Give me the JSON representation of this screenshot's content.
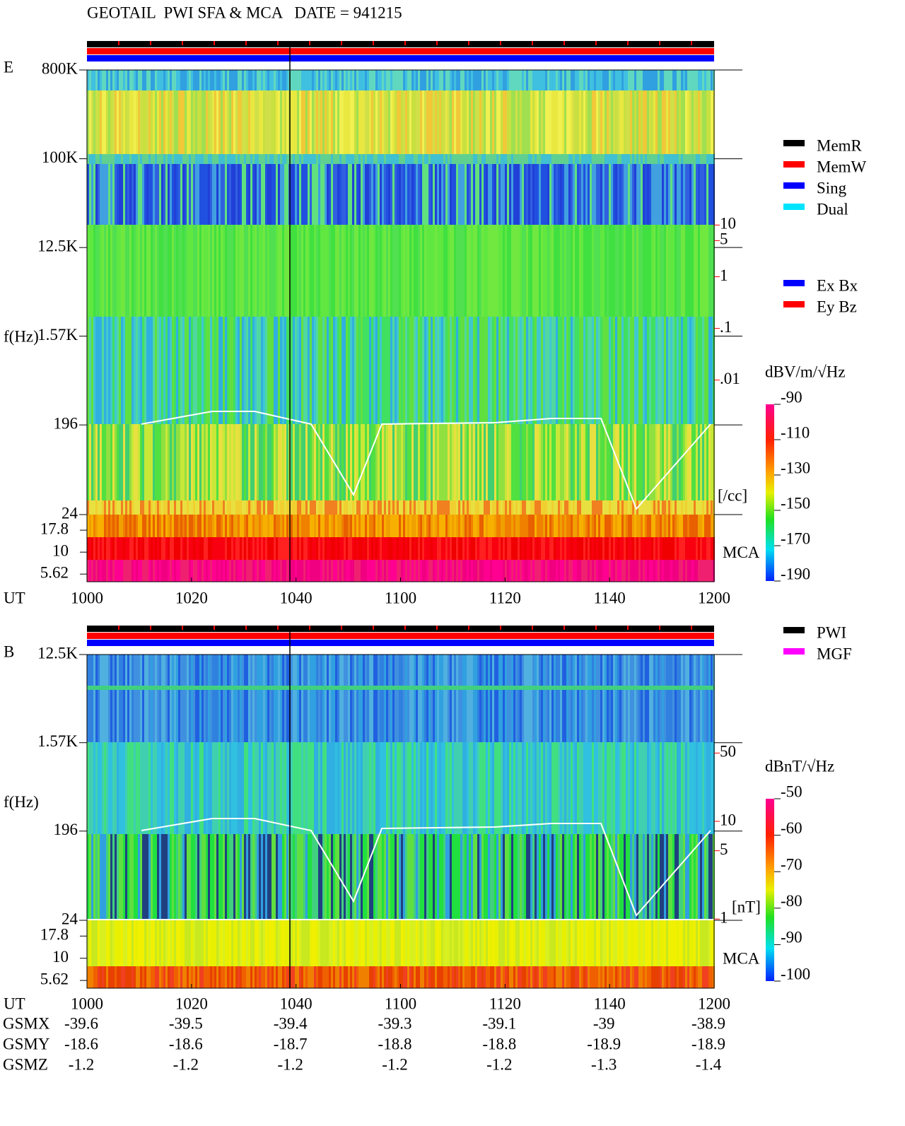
{
  "header": {
    "title": "GEOTAIL  PWI SFA & MCA   DATE = 941215"
  },
  "chart_data": [
    {
      "type": "spectrogram",
      "panel_label": "E",
      "ylabel": "f(Hz)",
      "xlabel": "UT",
      "xtick_labels": [
        "1000",
        "1020",
        "1040",
        "1100",
        "1120",
        "1140",
        "1200"
      ],
      "yscale": "log",
      "ylim": [
        24,
        800000
      ],
      "yticks": [
        {
          "value": 800000,
          "label": "800K"
        },
        {
          "value": 100000,
          "label": "100K"
        },
        {
          "value": 12500,
          "label": "12.5K"
        },
        {
          "value": 1570,
          "label": "1.57K"
        },
        196,
        24
      ],
      "mca_label": "MCA",
      "mca_ylim": [
        4.6,
        26.8
      ],
      "mca_yticks": [
        17.8,
        10,
        5.62
      ],
      "right_scale": {
        "label": "[/cc]",
        "color": "#ff0000",
        "lim": [
          2.5e-05,
          10000
        ],
        "ticks": [
          {
            "value": 10,
            "label": "10"
          },
          {
            "value": 5,
            "label": "5"
          },
          {
            "value": 1,
            "label": "1"
          },
          {
            "value": 0.1,
            "label": ".1"
          },
          {
            "value": 0.01,
            "label": ".01"
          }
        ]
      },
      "colorbar": {
        "label": "dBV/m/√Hz",
        "lim": [
          -190,
          -90
        ],
        "ticks": [
          -90,
          -110,
          -130,
          -150,
          -170,
          -190
        ]
      },
      "legends": [
        [
          {
            "name": "MemR",
            "color": "#000000"
          },
          {
            "name": "MemW",
            "color": "#ff0000"
          },
          {
            "name": "Sing",
            "color": "#0000ff"
          },
          {
            "name": "Dual",
            "color": "#00e5ff"
          }
        ],
        [
          {
            "name": "Ex Bx",
            "color": "#0000ff"
          },
          {
            "name": "Ey Bz",
            "color": "#ff0000"
          }
        ]
      ]
    },
    {
      "type": "spectrogram",
      "panel_label": "B",
      "ylabel": "f(Hz)",
      "xlabel": "UT",
      "xtick_labels": [
        "1000",
        "1020",
        "1040",
        "1100",
        "1120",
        "1140",
        "1200"
      ],
      "yscale": "log",
      "ylim": [
        24,
        12500
      ],
      "yticks": [
        {
          "value": 12500,
          "label": "12.5K"
        },
        {
          "value": 1570,
          "label": "1.57K"
        },
        196,
        24
      ],
      "mca_label": "MCA",
      "mca_ylim": [
        4.6,
        26.8
      ],
      "mca_yticks": [
        17.8,
        10,
        5.62
      ],
      "right_scale": {
        "label": "[nT]",
        "color": "#ff0000",
        "lim": [
          0.97,
          510
        ],
        "ticks": [
          50,
          10,
          5,
          1
        ]
      },
      "colorbar": {
        "label": "dBnT/√Hz",
        "lim": [
          -100,
          -50
        ],
        "ticks": [
          -50,
          -60,
          -70,
          -80,
          -90,
          -100
        ]
      },
      "legends": [
        [
          {
            "name": "PWI",
            "color": "#000000"
          },
          {
            "name": "MGF",
            "color": "#ff00ff"
          }
        ]
      ]
    }
  ],
  "orbit": {
    "rows": [
      {
        "label": "GSMX",
        "values": [
          -39.6,
          -39.5,
          -39.4,
          -39.3,
          -39.1,
          -39.0,
          -38.9
        ]
      },
      {
        "label": "GSMY",
        "values": [
          -18.6,
          -18.6,
          -18.7,
          -18.8,
          -18.8,
          -18.9,
          -18.9
        ]
      },
      {
        "label": "GSMZ",
        "values": [
          -1.2,
          -1.2,
          -1.2,
          -1.2,
          -1.2,
          -1.3,
          -1.4
        ]
      }
    ]
  }
}
